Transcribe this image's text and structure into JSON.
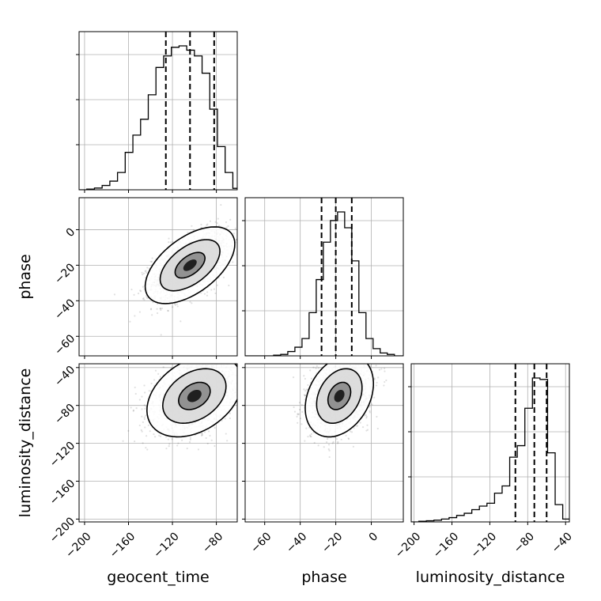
{
  "chart_data": {
    "type": "corner",
    "parameters": [
      "geocent_time",
      "phase",
      "luminosity_distance"
    ],
    "labels": {
      "geocent_time": "geocent_time",
      "phase": "phase",
      "luminosity_distance": "luminosity_distance"
    },
    "ranges": {
      "geocent_time": [
        -205,
        -61
      ],
      "phase": [
        -71,
        18
      ],
      "luminosity_distance": [
        -203,
        -36
      ]
    },
    "ticks": {
      "geocent_time": [
        -200,
        -160,
        -120,
        -80
      ],
      "phase": [
        -60,
        -40,
        -20,
        0
      ],
      "luminosity_distance": [
        -200,
        -160,
        -120,
        -80,
        -40
      ]
    },
    "quantiles": {
      "geocent_time": [
        -126,
        -104,
        -82
      ],
      "phase": [
        -28,
        -20,
        -11
      ],
      "luminosity_distance": [
        -93,
        -73,
        -60
      ]
    },
    "histograms": {
      "geocent_time": {
        "edges": [
          -205,
          -198,
          -191,
          -184,
          -177,
          -170,
          -163,
          -156,
          -149,
          -142,
          -135,
          -128,
          -121,
          -114,
          -107,
          -100,
          -93,
          -86,
          -79,
          -72,
          -65,
          -61
        ],
        "counts": [
          0.0,
          0.005,
          0.012,
          0.03,
          0.06,
          0.12,
          0.26,
          0.38,
          0.49,
          0.66,
          0.85,
          0.93,
          0.99,
          1.0,
          0.97,
          0.93,
          0.81,
          0.56,
          0.3,
          0.12,
          0.01
        ]
      },
      "phase": {
        "edges": [
          -71,
          -67,
          -63,
          -59,
          -55,
          -51,
          -47,
          -43,
          -39,
          -35,
          -31,
          -27,
          -23,
          -19,
          -15,
          -11,
          -7,
          -3,
          1,
          5,
          9,
          13,
          18
        ],
        "counts": [
          0.0,
          0.0,
          0.0,
          0.0,
          0.005,
          0.01,
          0.03,
          0.06,
          0.12,
          0.3,
          0.53,
          0.79,
          0.94,
          1.0,
          0.89,
          0.66,
          0.3,
          0.12,
          0.05,
          0.02,
          0.01,
          0.0
        ]
      },
      "luminosity_distance": {
        "edges": [
          -203,
          -195,
          -187,
          -179,
          -171,
          -163,
          -155,
          -147,
          -139,
          -131,
          -123,
          -115,
          -107,
          -99,
          -91,
          -83,
          -75,
          -67,
          -59,
          -51,
          -43,
          -36
        ],
        "counts": [
          0.0,
          0.005,
          0.008,
          0.012,
          0.02,
          0.03,
          0.045,
          0.06,
          0.085,
          0.11,
          0.13,
          0.2,
          0.25,
          0.45,
          0.53,
          0.79,
          1.0,
          0.99,
          0.48,
          0.12,
          0.02
        ]
      }
    },
    "pairs": [
      {
        "x": "geocent_time",
        "y": "phase",
        "center": [
          -104,
          -20
        ],
        "sigma": [
          17,
          9
        ],
        "rho": 0.55,
        "n_scatter": 2200,
        "contour_levels": [
          0.8,
          1.6,
          2.4
        ]
      },
      {
        "x": "geocent_time",
        "y": "luminosity_distance",
        "center": [
          -100,
          -70
        ],
        "sigma": [
          18,
          18
        ],
        "rho": 0.35,
        "n_scatter": 2200,
        "contour_levels": [
          0.8,
          1.6,
          2.4
        ]
      },
      {
        "x": "phase",
        "y": "luminosity_distance",
        "center": [
          -18,
          -70
        ],
        "sigma": [
          8,
          18
        ],
        "rho": 0.3,
        "n_scatter": 2200,
        "contour_levels": [
          0.8,
          1.6,
          2.4
        ]
      }
    ]
  }
}
